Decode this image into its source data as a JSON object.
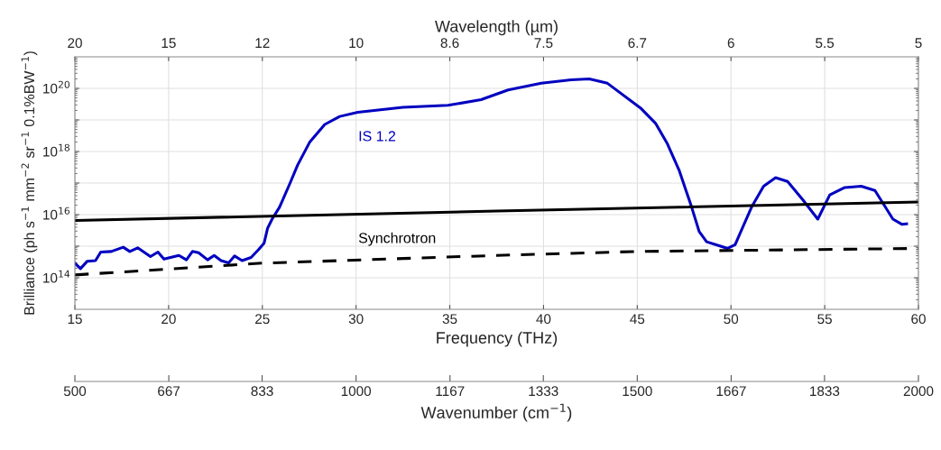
{
  "chart_data": {
    "type": "line",
    "xlabel": "Frequency (THz)",
    "ylabel": "Brilliance (ph s$^{−1}$ mm$^{−2}$ sr$^{−1}$ 0.1%BW$^{−1}$)",
    "x2label": "Wavenumber (cm$^{−1}$)",
    "xlim": [
      15,
      60
    ],
    "xticks": [
      15,
      20,
      25,
      30,
      35,
      40,
      45,
      50,
      55,
      60
    ],
    "x2lim": [
      500,
      2000
    ],
    "x2ticks": [
      500,
      667,
      833,
      1000,
      1167,
      1333,
      1500,
      1667,
      1833,
      2000
    ],
    "annotations": [
      "Wavelength (µm)",
      "20",
      "15",
      "12",
      "10",
      "8.6",
      "7.5",
      "6.7",
      "6",
      "5.5",
      "5"
    ],
    "ylim": [
      10000000000000.0,
      1e+21
    ],
    "yticks": [
      {
        "value": 100000000000000.0,
        "label": "10$^{14}$"
      },
      {
        "value": 1000000000000000.0,
        "label": null
      },
      {
        "value": 1e+16,
        "label": "10$^{16}$"
      },
      {
        "value": 1e+17,
        "label": null
      },
      {
        "value": 1e+18,
        "label": "10$^{18}$"
      },
      {
        "value": 1e+19,
        "label": null
      },
      {
        "value": 1e+20,
        "label": "10$^{20}$"
      }
    ],
    "log": "y",
    "grid": true,
    "legend": false,
    "series": [
      {
        "name": "IS 1.2",
        "color": "#0000c0",
        "line_style": "solid",
        "x": [
          15.0,
          15.3,
          15.65,
          16.1,
          16.38,
          16.94,
          17.58,
          17.93,
          18.35,
          19.03,
          19.43,
          19.75,
          20.55,
          20.95,
          21.27,
          21.6,
          22.08,
          22.43,
          22.8,
          23.2,
          23.52,
          23.92,
          24.4,
          24.8,
          25.09,
          25.28,
          25.52,
          25.92,
          26.48,
          26.88,
          27.52,
          28.33,
          29.13,
          30.09,
          32.5,
          34.9,
          36.67,
          38.11,
          39.88,
          41.48,
          42.44,
          43.41,
          45.17,
          45.97,
          46.61,
          47.25,
          47.9,
          48.3,
          48.7,
          49.18,
          49.82,
          50.22,
          51.1,
          51.74,
          52.38,
          53.02,
          53.83,
          54.63,
          55.27,
          56.07,
          56.95,
          57.68,
          58.64,
          59.13,
          59.37
        ],
        "values": [
          290000000000000.0,
          195000000000000.0,
          330000000000000.0,
          350000000000000.0,
          650000000000000.0,
          680000000000000.0,
          930000000000000.0,
          680000000000000.0,
          890000000000000.0,
          470000000000000.0,
          650000000000000.0,
          390000000000000.0,
          510000000000000.0,
          370000000000000.0,
          680000000000000.0,
          620000000000000.0,
          370000000000000.0,
          510000000000000.0,
          350000000000000.0,
          295000000000000.0,
          490000000000000.0,
          350000000000000.0,
          440000000000000.0,
          780000000000000.0,
          1230000000000000.0,
          3700000000000000.0,
          7200000000000000.0,
          1.74e+16,
          1e+17,
          3.7e+17,
          1.95e+18,
          7.2e+18,
          1.29e+19,
          1.74e+19,
          2.5e+19,
          2.9e+19,
          4.4e+19,
          8.9e+19,
          1.45e+20,
          1.86e+20,
          2e+20,
          1.45e+20,
          2.4e+19,
          7.9e+18,
          1.74e+18,
          2.4e+17,
          1.74e+16,
          2950000000000000.0,
          1380000000000000.0,
          1120000000000000.0,
          850000000000000.0,
          1120000000000000.0,
          1.74e+16,
          7.9e+16,
          1.48e+17,
          1.12e+17,
          2.95e+16,
          7200000000000000.0,
          4.2e+16,
          7.2e+16,
          7.9e+16,
          5.8e+16,
          7200000000000000.0,
          4900000000000000.0,
          5100000000000000.0
        ]
      },
      {
        "name": "Synchrotron",
        "color": "#000000",
        "line_style": "solid",
        "x": [
          15,
          37.5,
          60
        ],
        "values": [
          6500000000000000.0,
          1.3e+16,
          2.5e+16
        ]
      },
      {
        "color": "#000000",
        "line_style": "dashed",
        "x": [
          15,
          25,
          37.5,
          45,
          60
        ],
        "values": [
          123000000000000.0,
          290000000000000.0,
          510000000000000.0,
          680000000000000.0,
          850000000000000.0
        ]
      }
    ]
  }
}
